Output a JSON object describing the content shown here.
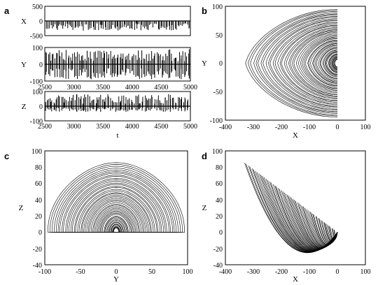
{
  "figure": {
    "panel_letters": [
      "a",
      "b",
      "c",
      "d"
    ]
  },
  "chart_data": [
    {
      "panel": "a",
      "type": "line",
      "title": "",
      "subplots": [
        {
          "ylabel": "X",
          "xlabel": "",
          "xlim": [
            2500,
            5000
          ],
          "ylim": [
            -500,
            500
          ],
          "yticks": [
            "500",
            "0",
            "-500"
          ],
          "xticks": [
            "2500",
            "3000",
            "3500",
            "4000",
            "4500",
            "5000"
          ],
          "series_style": "baseline 0 with negative spikes down to about -330",
          "baseline": 0,
          "spike_min": -330,
          "spike_max": 10
        },
        {
          "ylabel": "Y",
          "xlabel": "",
          "xlim": [
            2500,
            5000
          ],
          "ylim": [
            -100,
            100
          ],
          "yticks": [
            "100",
            "0",
            "-100"
          ],
          "xticks": [
            "2500",
            "3000",
            "3500",
            "4000",
            "4500",
            "5000"
          ],
          "series_style": "oscillation about 0 with spikes between about -90 and 90",
          "baseline": 0,
          "spike_min": -90,
          "spike_max": 90
        },
        {
          "ylabel": "Z",
          "xlabel": "t",
          "xlim": [
            2500,
            5000
          ],
          "ylim": [
            -100,
            100
          ],
          "yticks": [
            "100",
            "0",
            "-100"
          ],
          "xticks": [
            "2500",
            "3000",
            "3500",
            "4000",
            "4500",
            "5000"
          ],
          "series_style": "baseline 0 with spikes up to about 85 and down to about -40",
          "baseline": 0,
          "spike_min": -40,
          "spike_max": 85
        }
      ]
    },
    {
      "panel": "b",
      "type": "line",
      "title": "",
      "xlabel": "X",
      "ylabel": "Y",
      "xlim": [
        -400,
        100
      ],
      "ylim": [
        -100,
        100
      ],
      "xticks": [
        "-400",
        "-300",
        "-200",
        "-100",
        "0",
        "100"
      ],
      "yticks": [
        "100",
        "50",
        "0",
        "-50",
        "-100"
      ],
      "description": "nested loops converging to the origin; outer loop reaches X about -330, Y about +-95"
    },
    {
      "panel": "c",
      "type": "line",
      "title": "",
      "xlabel": "Y",
      "ylabel": "Z",
      "xlim": [
        -100,
        100
      ],
      "ylim": [
        -40,
        100
      ],
      "xticks": [
        "-100",
        "-50",
        "0",
        "50",
        "100"
      ],
      "yticks": [
        "100",
        "80",
        "60",
        "40",
        "20",
        "0",
        "-20",
        "-40"
      ],
      "description": "nested arches from Y about -95 to 95, peaking near Z about 85, with a V-shaped lower branch reaching Z about -35"
    },
    {
      "panel": "d",
      "type": "line",
      "title": "",
      "xlabel": "X",
      "ylabel": "Z",
      "xlim": [
        -400,
        100
      ],
      "ylim": [
        -40,
        100
      ],
      "xticks": [
        "-400",
        "-300",
        "-200",
        "-100",
        "0",
        "100"
      ],
      "yticks": [
        "100",
        "80",
        "60",
        "40",
        "20",
        "0",
        "-20",
        "-40"
      ],
      "description": "fan of curves from X about -330, Z about 85 sweeping down to near Z about -30 and back to the origin"
    }
  ]
}
